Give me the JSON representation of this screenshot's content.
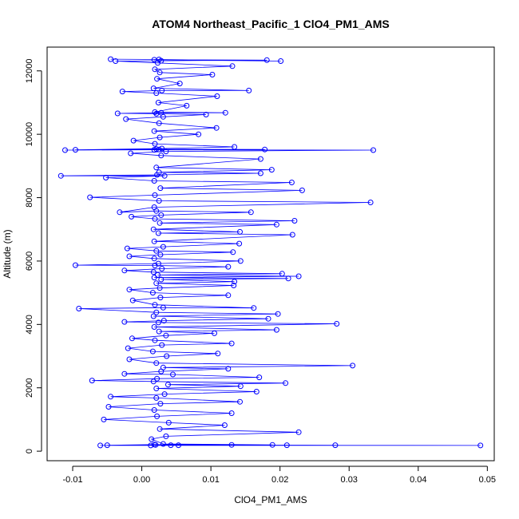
{
  "chart_data": {
    "type": "scatter",
    "title": "ATOM4 Northeast_Pacific_1 ClO4_PM1_AMS",
    "xlabel": "ClO4_PM1_AMS",
    "ylabel": "Altitude (m)",
    "xlim": [
      -0.0137,
      0.051
    ],
    "ylim": [
      -300,
      12750
    ],
    "x_ticks": [
      -0.01,
      0.0,
      0.01,
      0.02,
      0.03,
      0.04,
      0.05
    ],
    "x_tick_labels": [
      "-0.01",
      "0.00",
      "0.01",
      "0.02",
      "0.03",
      "0.04",
      "0.05"
    ],
    "y_ticks": [
      0,
      2000,
      4000,
      6000,
      8000,
      10000,
      12000
    ],
    "y_tick_labels": [
      "0",
      "2000",
      "4000",
      "6000",
      "8000",
      "10000",
      "12000"
    ],
    "grid": false,
    "legend": "none",
    "series_color": "#0000ff",
    "marker": "open-circle",
    "connect_points": true,
    "points": [
      {
        "x": 0.0013,
        "y": 180
      },
      {
        "x": 0.049,
        "y": 180
      },
      {
        "x": 0.0053,
        "y": 190
      },
      {
        "x": 0.028,
        "y": 190
      },
      {
        "x": 0.002,
        "y": 200
      },
      {
        "x": 0.021,
        "y": 190
      },
      {
        "x": -0.006,
        "y": 180
      },
      {
        "x": 0.0042,
        "y": 190
      },
      {
        "x": 0.013,
        "y": 200
      },
      {
        "x": -0.005,
        "y": 190
      },
      {
        "x": 0.0018,
        "y": 210
      },
      {
        "x": 0.0189,
        "y": 200
      },
      {
        "x": 0.0031,
        "y": 230
      },
      {
        "x": 0.0014,
        "y": 380
      },
      {
        "x": 0.0035,
        "y": 470
      },
      {
        "x": 0.0227,
        "y": 600
      },
      {
        "x": 0.0026,
        "y": 700
      },
      {
        "x": 0.012,
        "y": 820
      },
      {
        "x": 0.0039,
        "y": 900
      },
      {
        "x": -0.0055,
        "y": 1000
      },
      {
        "x": 0.0022,
        "y": 1100
      },
      {
        "x": 0.013,
        "y": 1200
      },
      {
        "x": 0.0018,
        "y": 1300
      },
      {
        "x": -0.0048,
        "y": 1400
      },
      {
        "x": 0.0027,
        "y": 1500
      },
      {
        "x": 0.0142,
        "y": 1560
      },
      {
        "x": 0.0021,
        "y": 1680
      },
      {
        "x": -0.0045,
        "y": 1720
      },
      {
        "x": 0.0033,
        "y": 1800
      },
      {
        "x": 0.0166,
        "y": 1880
      },
      {
        "x": 0.0021,
        "y": 1980
      },
      {
        "x": 0.0143,
        "y": 2050
      },
      {
        "x": 0.0038,
        "y": 2100
      },
      {
        "x": 0.0208,
        "y": 2150
      },
      {
        "x": 0.0017,
        "y": 2200
      },
      {
        "x": -0.0072,
        "y": 2230
      },
      {
        "x": 0.0022,
        "y": 2290
      },
      {
        "x": 0.017,
        "y": 2330
      },
      {
        "x": 0.0045,
        "y": 2420
      },
      {
        "x": -0.0025,
        "y": 2440
      },
      {
        "x": 0.0028,
        "y": 2520
      },
      {
        "x": 0.0125,
        "y": 2600
      },
      {
        "x": 0.0031,
        "y": 2640
      },
      {
        "x": 0.0305,
        "y": 2700
      },
      {
        "x": 0.0021,
        "y": 2780
      },
      {
        "x": -0.0018,
        "y": 2900
      },
      {
        "x": 0.0036,
        "y": 3000
      },
      {
        "x": 0.011,
        "y": 3080
      },
      {
        "x": 0.0016,
        "y": 3150
      },
      {
        "x": -0.002,
        "y": 3250
      },
      {
        "x": 0.0029,
        "y": 3350
      },
      {
        "x": 0.013,
        "y": 3400
      },
      {
        "x": 0.0019,
        "y": 3500
      },
      {
        "x": -0.0014,
        "y": 3560
      },
      {
        "x": 0.0035,
        "y": 3650
      },
      {
        "x": 0.0105,
        "y": 3720
      },
      {
        "x": 0.0025,
        "y": 3780
      },
      {
        "x": 0.0195,
        "y": 3830
      },
      {
        "x": 0.0018,
        "y": 3920
      },
      {
        "x": 0.0282,
        "y": 4020
      },
      {
        "x": 0.0024,
        "y": 4060
      },
      {
        "x": -0.0025,
        "y": 4080
      },
      {
        "x": 0.0032,
        "y": 4120
      },
      {
        "x": 0.0183,
        "y": 4180
      },
      {
        "x": 0.0017,
        "y": 4260
      },
      {
        "x": 0.0197,
        "y": 4330
      },
      {
        "x": 0.0021,
        "y": 4380
      },
      {
        "x": -0.0091,
        "y": 4500
      },
      {
        "x": 0.0031,
        "y": 4530
      },
      {
        "x": 0.0162,
        "y": 4520
      },
      {
        "x": 0.0019,
        "y": 4620
      },
      {
        "x": -0.0013,
        "y": 4760
      },
      {
        "x": 0.0027,
        "y": 4850
      },
      {
        "x": 0.0125,
        "y": 4920
      },
      {
        "x": 0.0016,
        "y": 5000
      },
      {
        "x": -0.0018,
        "y": 5100
      },
      {
        "x": 0.0026,
        "y": 5150
      },
      {
        "x": 0.0133,
        "y": 5230
      },
      {
        "x": 0.0021,
        "y": 5300
      },
      {
        "x": 0.0134,
        "y": 5350
      },
      {
        "x": 0.0028,
        "y": 5420
      },
      {
        "x": 0.0212,
        "y": 5450
      },
      {
        "x": 0.0018,
        "y": 5480
      },
      {
        "x": 0.0227,
        "y": 5520
      },
      {
        "x": 0.0023,
        "y": 5560
      },
      {
        "x": 0.0203,
        "y": 5600
      },
      {
        "x": 0.0017,
        "y": 5650
      },
      {
        "x": -0.0025,
        "y": 5700
      },
      {
        "x": 0.0029,
        "y": 5760
      },
      {
        "x": 0.0125,
        "y": 5820
      },
      {
        "x": 0.0019,
        "y": 5860
      },
      {
        "x": -0.0096,
        "y": 5870
      },
      {
        "x": 0.0024,
        "y": 5920
      },
      {
        "x": 0.0143,
        "y": 6000
      },
      {
        "x": 0.0018,
        "y": 6080
      },
      {
        "x": -0.0018,
        "y": 6150
      },
      {
        "x": 0.0027,
        "y": 6200
      },
      {
        "x": 0.0132,
        "y": 6280
      },
      {
        "x": 0.0021,
        "y": 6320
      },
      {
        "x": -0.0021,
        "y": 6400
      },
      {
        "x": 0.0031,
        "y": 6450
      },
      {
        "x": 0.0141,
        "y": 6550
      },
      {
        "x": 0.0018,
        "y": 6620
      },
      {
        "x": 0.0218,
        "y": 6830
      },
      {
        "x": 0.0024,
        "y": 6880
      },
      {
        "x": 0.0142,
        "y": 6920
      },
      {
        "x": 0.0017,
        "y": 7000
      },
      {
        "x": 0.0195,
        "y": 7150
      },
      {
        "x": 0.0026,
        "y": 7200
      },
      {
        "x": 0.0221,
        "y": 7270
      },
      {
        "x": 0.0019,
        "y": 7330
      },
      {
        "x": -0.0015,
        "y": 7400
      },
      {
        "x": 0.0028,
        "y": 7450
      },
      {
        "x": 0.0158,
        "y": 7540
      },
      {
        "x": 0.0021,
        "y": 7580
      },
      {
        "x": -0.0032,
        "y": 7540
      },
      {
        "x": 0.0018,
        "y": 7700
      },
      {
        "x": 0.0331,
        "y": 7850
      },
      {
        "x": 0.0025,
        "y": 7900
      },
      {
        "x": -0.0075,
        "y": 8010
      },
      {
        "x": 0.0019,
        "y": 8080
      },
      {
        "x": 0.0232,
        "y": 8230
      },
      {
        "x": 0.0027,
        "y": 8300
      },
      {
        "x": 0.0217,
        "y": 8480
      },
      {
        "x": 0.0018,
        "y": 8530
      },
      {
        "x": -0.0052,
        "y": 8630
      },
      {
        "x": 0.0033,
        "y": 8690
      },
      {
        "x": -0.0117,
        "y": 8690
      },
      {
        "x": 0.0022,
        "y": 8720
      },
      {
        "x": 0.0172,
        "y": 8770
      },
      {
        "x": 0.0025,
        "y": 8800
      },
      {
        "x": 0.0188,
        "y": 8880
      },
      {
        "x": 0.0021,
        "y": 8950
      },
      {
        "x": 0.0172,
        "y": 9220
      },
      {
        "x": 0.0028,
        "y": 9330
      },
      {
        "x": -0.0016,
        "y": 9400
      },
      {
        "x": 0.0035,
        "y": 9460
      },
      {
        "x": 0.0335,
        "y": 9500
      },
      {
        "x": 0.0018,
        "y": 9510
      },
      {
        "x": -0.0111,
        "y": 9500
      },
      {
        "x": 0.0025,
        "y": 9520
      },
      {
        "x": 0.0178,
        "y": 9520
      },
      {
        "x": 0.0021,
        "y": 9530
      },
      {
        "x": -0.0096,
        "y": 9510
      },
      {
        "x": 0.0029,
        "y": 9550
      },
      {
        "x": 0.0134,
        "y": 9600
      },
      {
        "x": 0.0019,
        "y": 9700
      },
      {
        "x": -0.0012,
        "y": 9800
      },
      {
        "x": 0.0026,
        "y": 9900
      },
      {
        "x": 0.0082,
        "y": 10000
      },
      {
        "x": 0.0018,
        "y": 10100
      },
      {
        "x": 0.0108,
        "y": 10200
      },
      {
        "x": 0.0025,
        "y": 10350
      },
      {
        "x": -0.0023,
        "y": 10480
      },
      {
        "x": 0.0031,
        "y": 10550
      },
      {
        "x": 0.0093,
        "y": 10620
      },
      {
        "x": 0.0021,
        "y": 10650
      },
      {
        "x": -0.0035,
        "y": 10660
      },
      {
        "x": 0.0028,
        "y": 10680
      },
      {
        "x": 0.0121,
        "y": 10680
      },
      {
        "x": 0.0019,
        "y": 10700
      },
      {
        "x": 0.0065,
        "y": 10900
      },
      {
        "x": 0.0024,
        "y": 11000
      },
      {
        "x": 0.0109,
        "y": 11200
      },
      {
        "x": 0.0021,
        "y": 11300
      },
      {
        "x": -0.0028,
        "y": 11350
      },
      {
        "x": 0.0029,
        "y": 11380
      },
      {
        "x": 0.0155,
        "y": 11380
      },
      {
        "x": 0.0017,
        "y": 11450
      },
      {
        "x": 0.0055,
        "y": 11600
      },
      {
        "x": 0.0022,
        "y": 11750
      },
      {
        "x": 0.0102,
        "y": 11880
      },
      {
        "x": 0.0026,
        "y": 11950
      },
      {
        "x": 0.0019,
        "y": 12050
      },
      {
        "x": 0.0131,
        "y": 12150
      },
      {
        "x": 0.0023,
        "y": 12250
      },
      {
        "x": -0.0038,
        "y": 12310
      },
      {
        "x": 0.0028,
        "y": 12320
      },
      {
        "x": 0.0181,
        "y": 12340
      },
      {
        "x": 0.0018,
        "y": 12350
      },
      {
        "x": 0.0201,
        "y": 12310
      },
      {
        "x": 0.0025,
        "y": 12360
      },
      {
        "x": -0.0045,
        "y": 12370
      }
    ]
  }
}
